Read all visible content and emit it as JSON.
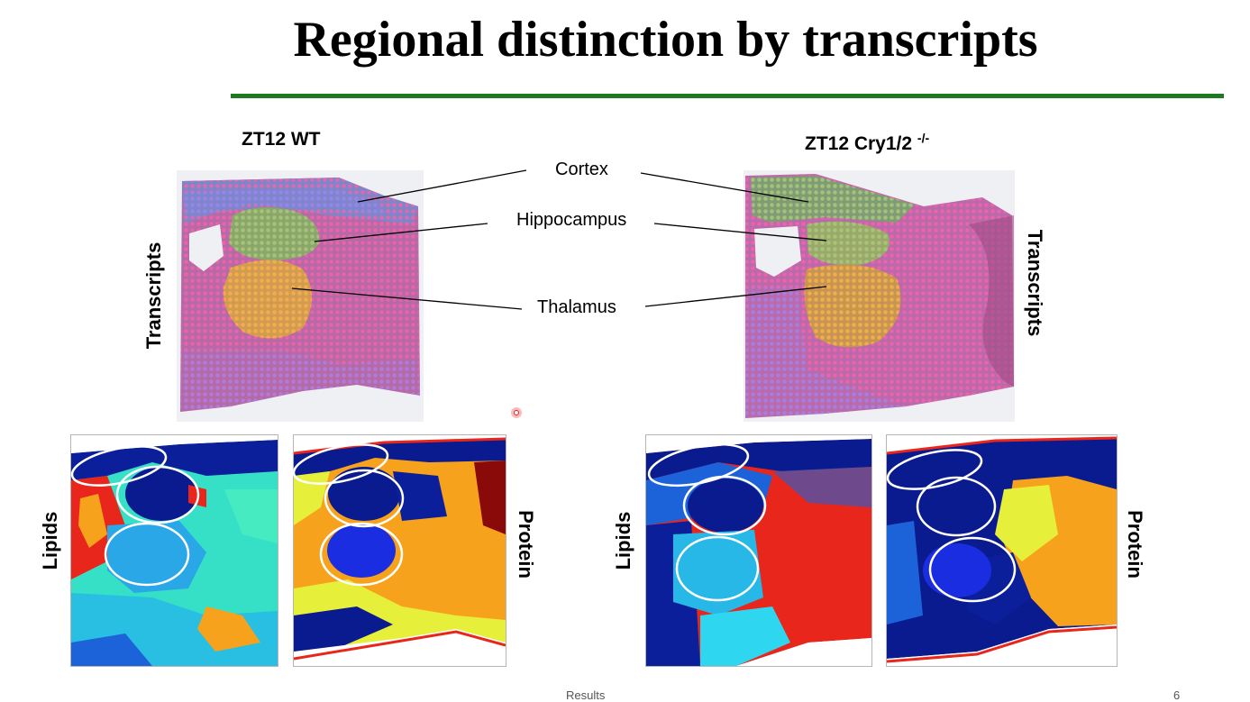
{
  "slide": {
    "title": "Regional distinction by transcripts",
    "footer_section": "Results",
    "page_number": "6"
  },
  "conditions": {
    "left": {
      "label": "ZT12 WT",
      "superscript": ""
    },
    "right": {
      "label": "ZT12 Cry1/2",
      "superscript": "-/-"
    }
  },
  "regions": [
    "Cortex",
    "Hippocampus",
    "Thalamus"
  ],
  "modalities": {
    "transcripts": "Transcripts",
    "lipids": "Lipids",
    "protein": "Protein"
  },
  "colors": {
    "accent_rule": "#1f7a1f",
    "tissue_pink": "#c46aa8",
    "cortex_green": "#7f9c74",
    "thalamus_orange": "#d29a4e",
    "map_navy": "#0a1a8f",
    "map_cyan": "#2fd6d2",
    "map_red": "#e8261b",
    "map_orange": "#f7a21c",
    "map_yellow": "#e6ef3a"
  }
}
